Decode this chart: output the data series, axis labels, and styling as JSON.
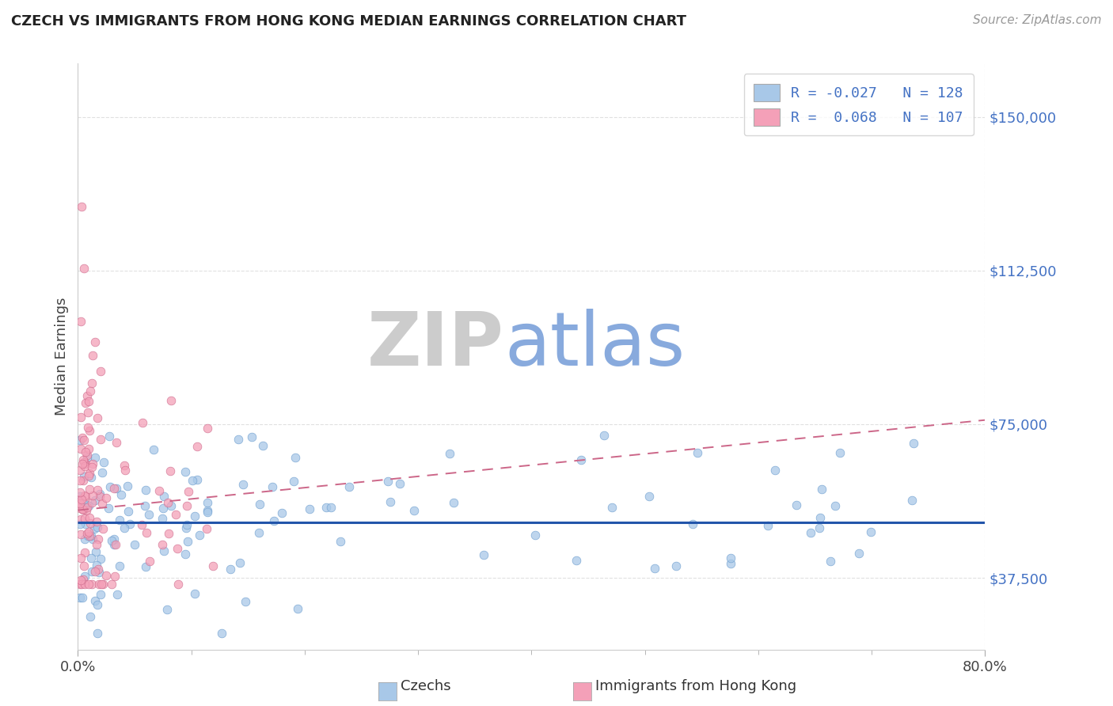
{
  "title": "CZECH VS IMMIGRANTS FROM HONG KONG MEDIAN EARNINGS CORRELATION CHART",
  "source": "Source: ZipAtlas.com",
  "ylabel": "Median Earnings",
  "yticks": [
    37500,
    75000,
    112500,
    150000
  ],
  "ytick_labels": [
    "$37,500",
    "$75,000",
    "$112,500",
    "$150,000"
  ],
  "xlim": [
    0.0,
    80.0
  ],
  "ylim": [
    20000,
    163000
  ],
  "legend_r1": "-0.027",
  "legend_n1": "128",
  "legend_r2": "0.068",
  "legend_n2": "107",
  "color_czech": "#a8c8e8",
  "color_czech_edge": "#6699cc",
  "color_hk": "#f4a0b8",
  "color_hk_edge": "#cc6688",
  "color_axis_label": "#4472c4",
  "color_trend_czech": "#2255aa",
  "color_trend_hk": "#cc6688",
  "color_title": "#222222",
  "color_source": "#999999",
  "watermark_zip": "#cccccc",
  "watermark_atlas": "#88aadd",
  "background_color": "#ffffff",
  "grid_color": "#dddddd",
  "czech_flat_y": 51000,
  "hk_trend_y0": 54000,
  "hk_trend_y1": 76000
}
